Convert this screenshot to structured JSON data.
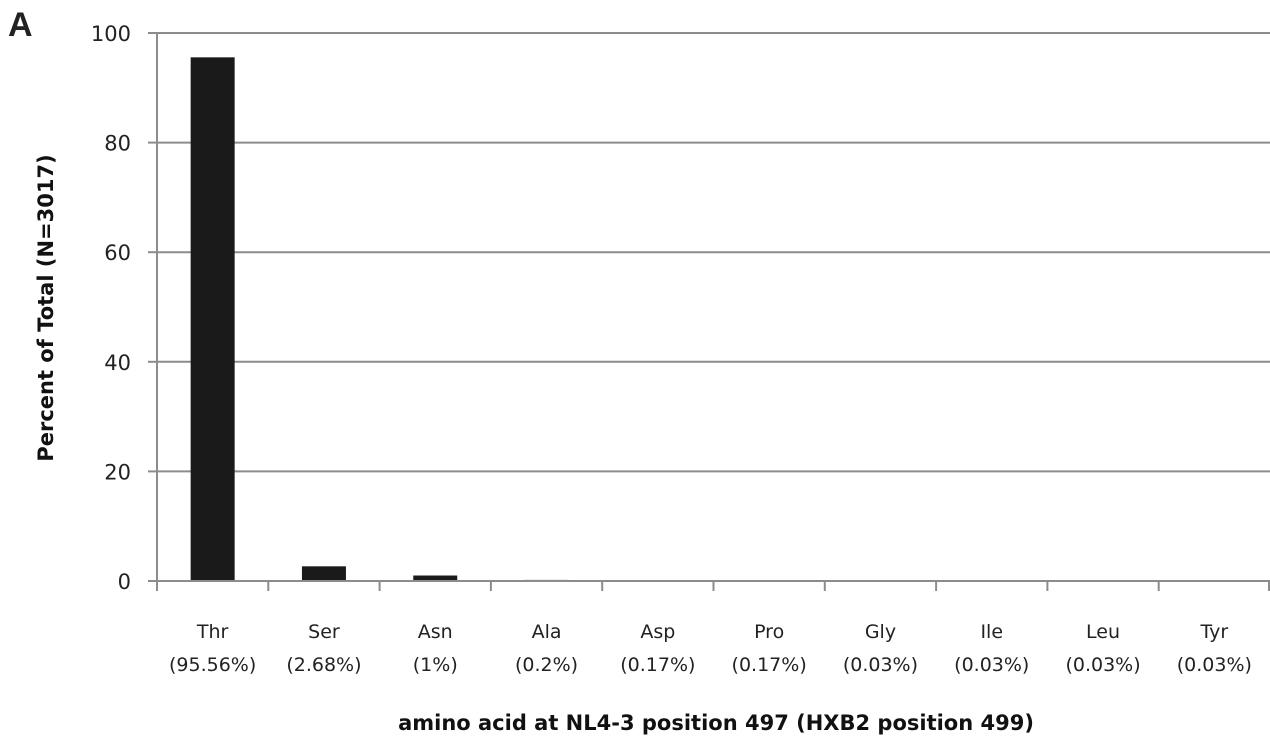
{
  "panel_label": "A",
  "chart_data": {
    "type": "bar",
    "categories": [
      "Thr",
      "Ser",
      "Asn",
      "Ala",
      "Asp",
      "Pro",
      "Gly",
      "Ile",
      "Leu",
      "Tyr"
    ],
    "category_percent_labels": [
      "(95.56%)",
      "(2.68%)",
      "(1%)",
      "(0.2%)",
      "(0.17%)",
      "(0.17%)",
      "(0.03%)",
      "(0.03%)",
      "(0.03%)",
      "(0.03%)"
    ],
    "values": [
      95.56,
      2.68,
      1,
      0.2,
      0.17,
      0.17,
      0.03,
      0.03,
      0.03,
      0.03
    ],
    "xlabel": "amino acid at NL4-3 position 497 (HXB2 position 499)",
    "ylabel": "Percent of Total (N=3017)",
    "ylim": [
      0,
      100
    ],
    "yticks": [
      0,
      20,
      40,
      60,
      80,
      100
    ],
    "grid": true,
    "bar_color": "#1a1a1a",
    "grid_color": "#8c8c8c"
  }
}
